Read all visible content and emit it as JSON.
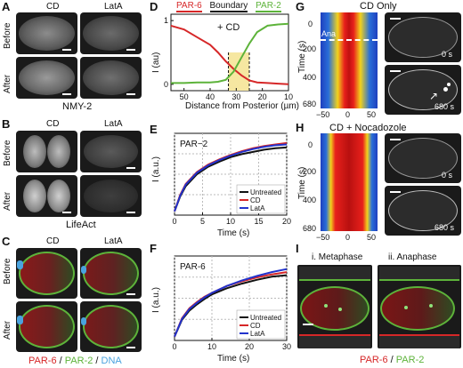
{
  "panels": {
    "A": {
      "label": "A",
      "col_labels": [
        "CD",
        "LatA"
      ],
      "row_labels": [
        "Before",
        "After"
      ],
      "caption": "NMY-2"
    },
    "B": {
      "label": "B",
      "col_labels": [
        "CD",
        "LatA"
      ],
      "row_labels": [
        "Before",
        "After"
      ],
      "caption": "LifeAct"
    },
    "C": {
      "label": "C",
      "col_labels": [
        "CD",
        "LatA"
      ],
      "row_labels": [
        "Before",
        "After"
      ],
      "legend": {
        "par6": "PAR-6",
        "sep1": " / ",
        "par2": "PAR-2",
        "sep2": " / ",
        "dna": "DNA"
      }
    },
    "D": {
      "label": "D",
      "legend": {
        "par6": "PAR-6",
        "boundary": "Boundary",
        "par2": "PAR-2"
      },
      "annotation": "+ CD",
      "ylabel": "I (au)",
      "xlabel": "Distance from Posterior (µm)"
    },
    "E": {
      "label": "E",
      "title": "PAR−2",
      "ylabel": "I (a.u.)",
      "xlabel": "Time (s)"
    },
    "F": {
      "label": "F",
      "title": "PAR-6",
      "ylabel": "I (a.u.)",
      "xlabel": "Time (s)"
    },
    "G": {
      "label": "G",
      "title": "CD Only",
      "ylabel": "Time (s)",
      "ana": "Ana",
      "time_top": "0 s",
      "time_bottom": "680 s",
      "yticks": [
        "0",
        "200",
        "400",
        "680"
      ],
      "xticks": [
        "−50",
        "0",
        "50"
      ]
    },
    "H": {
      "label": "H",
      "title": "CD + Nocadozole",
      "ylabel": "Time (s)",
      "time_top": "0 s",
      "time_bottom": "680 s",
      "yticks": [
        "0",
        "200",
        "400",
        "680"
      ],
      "xticks": [
        "−50",
        "0",
        "50"
      ]
    },
    "I": {
      "label": "I",
      "sub1": "i. Metaphase",
      "sub2": "ii. Anaphase",
      "legend": {
        "par6": "PAR-6",
        "sep": " / ",
        "par2": "PAR-2"
      }
    }
  },
  "colors": {
    "par6": "#d62728",
    "par2": "#5db33a",
    "dna": "#4aa3df",
    "boundary": "#111111",
    "untreated": "#111111",
    "cd": "#d62728",
    "latA": "#2233cc",
    "highlight": "#f6e7a1"
  },
  "chart_data": [
    {
      "id": "D",
      "type": "line",
      "xlabel": "Distance from Posterior (µm)",
      "ylabel": "I (au)",
      "xlim": [
        55,
        10
      ],
      "ylim": [
        -0.1,
        1.1
      ],
      "xticks": [
        50,
        40,
        30,
        20,
        10
      ],
      "yticks": [
        0,
        1
      ],
      "boundary_region": [
        33,
        25
      ],
      "series": [
        {
          "name": "PAR-6",
          "x": [
            55,
            50,
            45,
            40,
            37,
            34,
            31,
            28,
            25,
            22,
            18,
            14,
            10
          ],
          "y": [
            0.92,
            0.86,
            0.74,
            0.62,
            0.5,
            0.36,
            0.24,
            0.14,
            0.06,
            0.03,
            0.02,
            0.01,
            0.0
          ]
        },
        {
          "name": "PAR-2",
          "x": [
            55,
            50,
            45,
            40,
            37,
            34,
            31,
            28,
            25,
            22,
            18,
            14,
            10
          ],
          "y": [
            0.02,
            0.02,
            0.03,
            0.03,
            0.04,
            0.07,
            0.2,
            0.42,
            0.64,
            0.82,
            0.92,
            0.94,
            0.95
          ]
        }
      ]
    },
    {
      "id": "E",
      "type": "line",
      "title": "PAR−2",
      "xlabel": "Time (s)",
      "ylabel": "I (a.u.)",
      "xlim": [
        0,
        20
      ],
      "xticks": [
        0,
        5,
        10,
        15,
        20
      ],
      "series": [
        {
          "name": "Untreated",
          "x": [
            0,
            1,
            2,
            4,
            6,
            8,
            10,
            12,
            14,
            16,
            18,
            20
          ],
          "y": [
            0.0,
            0.2,
            0.34,
            0.5,
            0.6,
            0.67,
            0.73,
            0.77,
            0.8,
            0.83,
            0.85,
            0.86
          ]
        },
        {
          "name": "CD",
          "x": [
            0,
            1,
            2,
            4,
            6,
            8,
            10,
            12,
            14,
            16,
            18,
            20
          ],
          "y": [
            0.0,
            0.22,
            0.37,
            0.53,
            0.63,
            0.7,
            0.76,
            0.81,
            0.85,
            0.88,
            0.9,
            0.92
          ]
        },
        {
          "name": "LatA",
          "x": [
            0,
            1,
            2,
            4,
            6,
            8,
            10,
            12,
            14,
            16,
            18,
            20
          ],
          "y": [
            0.0,
            0.21,
            0.36,
            0.52,
            0.62,
            0.69,
            0.75,
            0.8,
            0.84,
            0.87,
            0.89,
            0.9
          ]
        }
      ]
    },
    {
      "id": "F",
      "type": "line",
      "title": "PAR-6",
      "xlabel": "Time (s)",
      "ylabel": "I (a.u.)",
      "xlim": [
        0,
        30
      ],
      "xticks": [
        0,
        10,
        20,
        30
      ],
      "series": [
        {
          "name": "Untreated",
          "x": [
            0,
            2,
            4,
            6,
            8,
            10,
            14,
            18,
            22,
            26,
            30
          ],
          "y": [
            0.0,
            0.22,
            0.34,
            0.42,
            0.49,
            0.55,
            0.63,
            0.69,
            0.74,
            0.78,
            0.8
          ]
        },
        {
          "name": "CD",
          "x": [
            0,
            2,
            4,
            6,
            8,
            10,
            14,
            18,
            22,
            26,
            30
          ],
          "y": [
            0.0,
            0.24,
            0.37,
            0.45,
            0.52,
            0.57,
            0.66,
            0.72,
            0.77,
            0.81,
            0.84
          ]
        },
        {
          "name": "LatA",
          "x": [
            0,
            2,
            4,
            6,
            8,
            10,
            14,
            18,
            22,
            26,
            30
          ],
          "y": [
            0.0,
            0.23,
            0.36,
            0.44,
            0.51,
            0.57,
            0.66,
            0.73,
            0.79,
            0.84,
            0.88
          ]
        }
      ]
    }
  ]
}
